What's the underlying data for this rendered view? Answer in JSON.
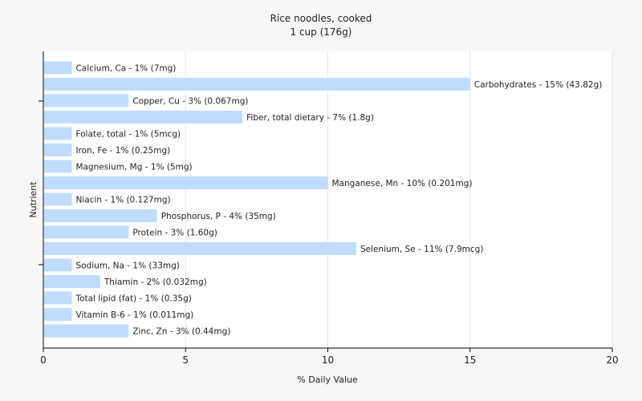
{
  "chart_data": {
    "type": "bar",
    "orientation": "horizontal",
    "title": "Rice noodles, cooked",
    "subtitle": "1 cup (176g)",
    "xlabel": "% Daily Value",
    "ylabel": "Nutrient",
    "xlim": [
      0,
      20
    ],
    "xticks": [
      "0",
      "5",
      "10",
      "15",
      "20"
    ],
    "grid": true,
    "bar_color": "#bfdcff",
    "categories": [
      "Calcium, Ca",
      "Carbohydrates",
      "Copper, Cu",
      "Fiber, total dietary",
      "Folate, total",
      "Iron, Fe",
      "Magnesium, Mg",
      "Manganese, Mn",
      "Niacin",
      "Phosphorus, P",
      "Protein",
      "Selenium, Se",
      "Sodium, Na",
      "Thiamin",
      "Total lipid (fat)",
      "Vitamin B-6",
      "Zinc, Zn"
    ],
    "values": [
      1,
      15,
      3,
      7,
      1,
      1,
      1,
      10,
      1,
      4,
      3,
      11,
      1,
      2,
      1,
      1,
      3
    ],
    "labels": [
      "Calcium, Ca - 1% (7mg)",
      "Carbohydrates - 15% (43.82g)",
      "Copper, Cu - 3% (0.067mg)",
      "Fiber, total dietary - 7% (1.8g)",
      "Folate, total - 1% (5mcg)",
      "Iron, Fe - 1% (0.25mg)",
      "Magnesium, Mg - 1% (5mg)",
      "Manganese, Mn - 10% (0.201mg)",
      "Niacin - 1% (0.127mg)",
      "Phosphorus, P - 4% (35mg)",
      "Protein - 3% (1.60g)",
      "Selenium, Se - 11% (7.9mcg)",
      "Sodium, Na - 1% (33mg)",
      "Thiamin - 2% (0.032mg)",
      "Total lipid (fat) - 1% (0.35g)",
      "Vitamin B-6 - 1% (0.011mg)",
      "Zinc, Zn - 3% (0.44mg)"
    ]
  }
}
